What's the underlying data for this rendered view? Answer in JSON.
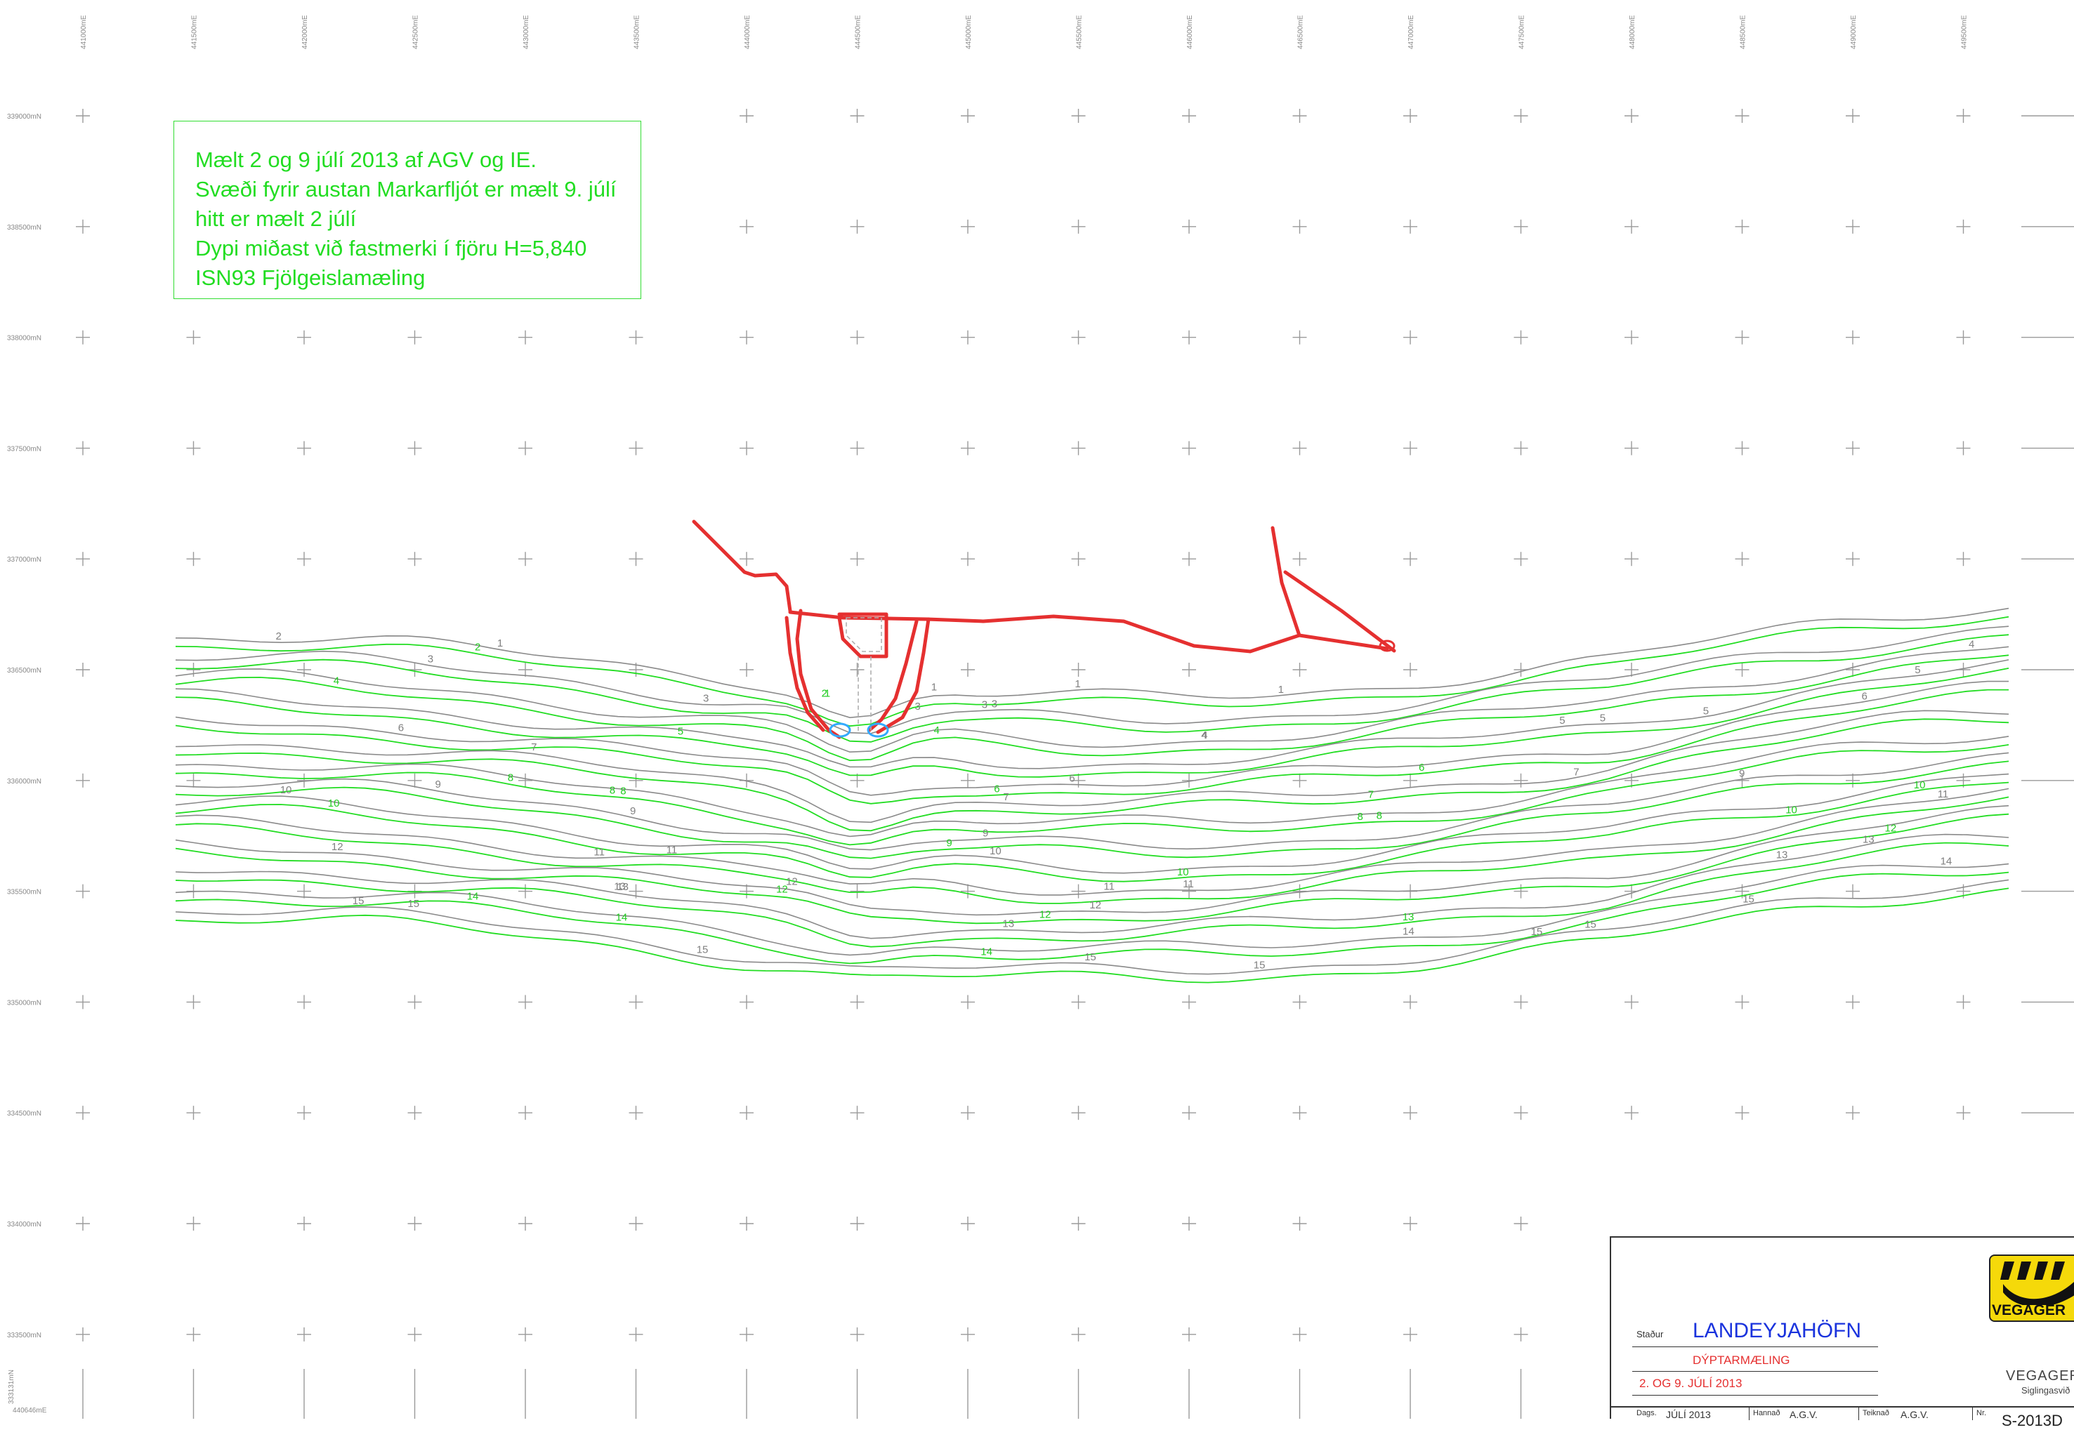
{
  "grid": {
    "easting_labels": [
      "441000mE",
      "441500mE",
      "442000mE",
      "442500mE",
      "443000mE",
      "443500mE",
      "444000mE",
      "444500mE",
      "445000mE",
      "445500mE",
      "446000mE",
      "446500mE",
      "447000mE",
      "447500mE",
      "448000mE",
      "448500mE",
      "449000mE",
      "449500mE"
    ],
    "northing_labels": [
      "339000mN",
      "338500mN",
      "338000mN",
      "337500mN",
      "337000mN",
      "336500mN",
      "336000mN",
      "335500mN",
      "335000mN",
      "334500mN",
      "334000mN",
      "333500mN"
    ],
    "corner_northing": "333131mN",
    "corner_easting": "440646mE",
    "cross_color": "#9a9a9a"
  },
  "note": {
    "lines": [
      "Mælt 2 og 9 júlí 2013 af AGV og IE.",
      "Svæði fyrir austan Markarfljót er mælt 9. júlí",
      "hitt er mælt 2 júlí",
      "Dypi miðast við fastmerki í fjöru H=5,840",
      "ISN93 Fjölgeislamæling"
    ],
    "color": "#22dd22"
  },
  "depth_contours": {
    "levels": [
      2,
      3,
      4,
      5,
      6,
      7,
      8,
      9,
      10,
      11,
      12,
      13,
      14,
      15
    ],
    "colors": {
      "survey_2_july": "#8a8a8a",
      "survey_9_july": "#22dd22",
      "harbor_structure": "#e53030"
    },
    "labels": [
      {
        "t": "1",
        "c": "g"
      },
      {
        "t": "4",
        "c": "g"
      },
      {
        "t": "6",
        "c": "g"
      },
      {
        "t": "9",
        "c": "g"
      },
      {
        "t": "10",
        "c": "g"
      },
      {
        "t": "11",
        "c": "g"
      },
      {
        "t": "12",
        "c": "g"
      },
      {
        "t": "13",
        "c": "g"
      },
      {
        "t": "15",
        "c": "g"
      },
      {
        "t": "1",
        "c": "g"
      },
      {
        "t": "3",
        "c": "g"
      },
      {
        "t": "5",
        "c": "g"
      },
      {
        "t": "8",
        "c": "G"
      },
      {
        "t": "10",
        "c": "G"
      },
      {
        "t": "12",
        "c": "g"
      },
      {
        "t": "13",
        "c": "g"
      },
      {
        "t": "14",
        "c": "g"
      },
      {
        "t": "2",
        "c": "G"
      },
      {
        "t": "4",
        "c": "g"
      },
      {
        "t": "6",
        "c": "g"
      },
      {
        "t": "8",
        "c": "G"
      },
      {
        "t": "10",
        "c": "g"
      },
      {
        "t": "12",
        "c": "G"
      },
      {
        "t": "14",
        "c": "g"
      },
      {
        "t": "15",
        "c": "g"
      },
      {
        "t": "3",
        "c": "g"
      },
      {
        "t": "5",
        "c": "g"
      },
      {
        "t": "7",
        "c": "g"
      },
      {
        "t": "9",
        "c": "G"
      },
      {
        "t": "11",
        "c": "g"
      },
      {
        "t": "13",
        "c": "G"
      },
      {
        "t": "15",
        "c": "g"
      },
      {
        "t": "1",
        "c": "g"
      },
      {
        "t": "4",
        "c": "g"
      },
      {
        "t": "6",
        "c": "G"
      },
      {
        "t": "8",
        "c": "G"
      },
      {
        "t": "10",
        "c": "G"
      },
      {
        "t": "12",
        "c": "g"
      },
      {
        "t": "14",
        "c": "G"
      },
      {
        "t": "15",
        "c": "g"
      },
      {
        "t": "1",
        "c": "G"
      },
      {
        "t": "2",
        "c": "G"
      },
      {
        "t": "4",
        "c": "G"
      },
      {
        "t": "6",
        "c": "g"
      },
      {
        "t": "8",
        "c": "G"
      },
      {
        "t": "10",
        "c": "G"
      },
      {
        "t": "12",
        "c": "G"
      },
      {
        "t": "14",
        "c": "G"
      },
      {
        "t": "1",
        "c": "g"
      },
      {
        "t": "3",
        "c": "g"
      },
      {
        "t": "5",
        "c": "g"
      },
      {
        "t": "7",
        "c": "G"
      },
      {
        "t": "9",
        "c": "g"
      },
      {
        "t": "11",
        "c": "g"
      },
      {
        "t": "13",
        "c": "g"
      },
      {
        "t": "15",
        "c": "g"
      },
      {
        "t": "2",
        "c": "g"
      },
      {
        "t": "4",
        "c": "G"
      },
      {
        "t": "6",
        "c": "G"
      },
      {
        "t": "8",
        "c": "G"
      },
      {
        "t": "10",
        "c": "G"
      },
      {
        "t": "12",
        "c": "G"
      },
      {
        "t": "14",
        "c": "G"
      },
      {
        "t": "15",
        "c": "g"
      },
      {
        "t": "3",
        "c": "g"
      },
      {
        "t": "5",
        "c": "g"
      },
      {
        "t": "7",
        "c": "g"
      },
      {
        "t": "9",
        "c": "g"
      },
      {
        "t": "11",
        "c": "g"
      },
      {
        "t": "13",
        "c": "g"
      },
      {
        "t": "15",
        "c": "g"
      },
      {
        "t": "3",
        "c": "g"
      },
      {
        "t": "5",
        "c": "G"
      },
      {
        "t": "7",
        "c": "g"
      },
      {
        "t": "9",
        "c": "g"
      },
      {
        "t": "11",
        "c": "g"
      },
      {
        "t": "13",
        "c": "g"
      },
      {
        "t": "15",
        "c": "g"
      }
    ]
  },
  "title_block": {
    "staour_label": "Staður",
    "place": "LANDEYJAHÖFN",
    "subject": "DÝPTARMÆLING",
    "dates": "2. OG 9. JÚLÍ 2013",
    "dags_label": "Dags.",
    "dags_value": "JÚLÍ 2013",
    "hannad_label": "Hannað",
    "hannad_value": "A.G.V.",
    "teiknad_label": "Teiknað",
    "teiknad_value": "A.G.V.",
    "nr_label": "Nr.",
    "drawing_no": "S-2013D",
    "logo_text": "VEGAGER",
    "org_name": "VEGAGER",
    "org_sub": "Siglingasvið",
    "logo_color": "#f5d90a",
    "place_color": "#1a33dd",
    "subject_color": "#e53030"
  }
}
